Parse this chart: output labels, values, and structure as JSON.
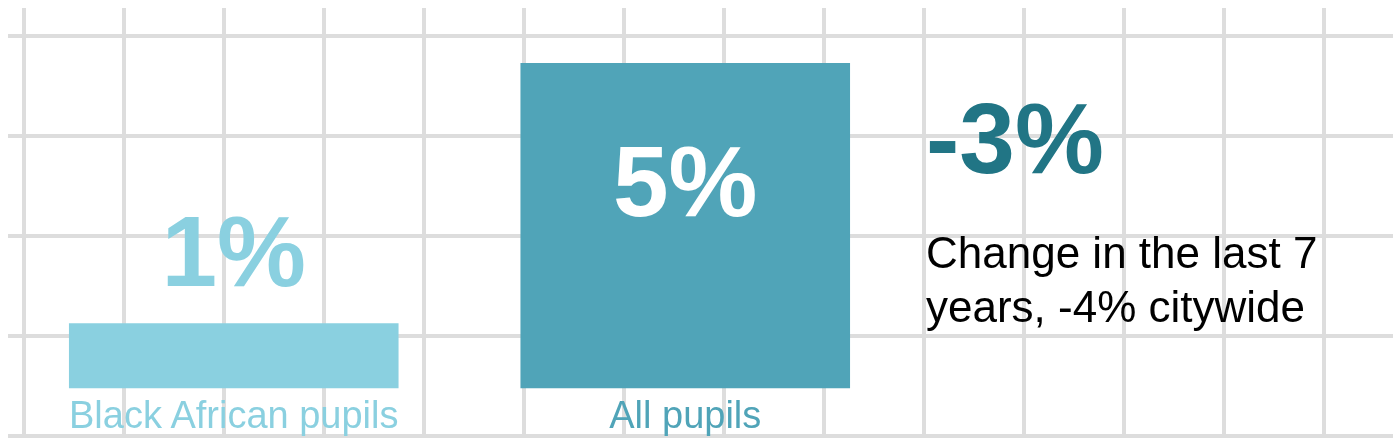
{
  "chart_data": {
    "type": "bar",
    "categories": [
      "Black African pupils",
      "All pupils"
    ],
    "values": [
      1,
      5
    ],
    "colors": [
      "#8ad0e0",
      "#50a4b8"
    ],
    "value_labels": [
      "1%",
      "5%"
    ],
    "tick_labels": "x",
    "grid": false,
    "legend": false,
    "annotations": [
      "-3%",
      "Change in the last 7 years, -4% citywide"
    ]
  }
}
